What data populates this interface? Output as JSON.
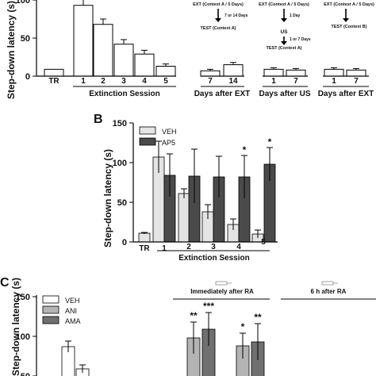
{
  "chart_data": [
    {
      "panel": "A",
      "type": "bar",
      "ylabel": "Step-down latency (s)",
      "ylim": [
        0,
        100
      ],
      "yticks": [
        0,
        50,
        100
      ],
      "groups": [
        {
          "label": "",
          "categories": [
            "TR"
          ]
        },
        {
          "label": "Extinction Session",
          "categories": [
            "1",
            "2",
            "3",
            "4",
            "5"
          ]
        },
        {
          "label": "Days after EXT",
          "categories": [
            "7",
            "14"
          ]
        },
        {
          "label": "Days after US",
          "categories": [
            "1",
            "7"
          ]
        },
        {
          "label": "Days after EXT",
          "categories": [
            "1",
            "7"
          ]
        }
      ],
      "values": [
        9,
        93,
        68,
        42,
        29,
        13,
        7,
        15,
        9,
        8,
        9,
        8
      ],
      "errors": [
        0,
        8,
        7,
        6,
        5,
        3,
        2,
        3,
        2,
        2,
        2,
        2
      ],
      "bar_color": "#ffffff",
      "annotations": {
        "ext_a": "EXT (Context A / 5 Days)",
        "ext_a_gap": "7 or 14 Days",
        "test_a": "TEST (Context A)",
        "ext_b": "EXT (Context A / 5 Days)",
        "us_gap": "1 Day",
        "us": "US",
        "us_gap2": "1 or 7 Days",
        "test_b": "TEST (Context A)",
        "ext_c": "EXT (Context A / 5 Days)",
        "test_c": "TEST (Context B)"
      }
    },
    {
      "panel": "B",
      "type": "bar",
      "ylabel": "Step-down latency (s)",
      "xlabel": "Extinction Session",
      "ylim": [
        0,
        150
      ],
      "yticks": [
        0,
        50,
        100,
        150
      ],
      "legend_position": "top-left",
      "series": [
        {
          "name": "VEH",
          "color": "#e4e4e4",
          "x": [
            "TR",
            "1",
            "2",
            "3",
            "4",
            "5"
          ],
          "values": [
            11,
            107,
            61,
            38,
            22,
            10
          ],
          "errors": [
            1,
            20,
            6,
            9,
            7,
            5
          ]
        },
        {
          "name": "AP5",
          "color": "#4a4a4a",
          "x": [
            "1",
            "2",
            "3",
            "4",
            "5"
          ],
          "values": [
            84,
            83,
            82,
            82,
            98
          ],
          "errors": [
            27,
            34,
            26,
            27,
            21
          ]
        }
      ],
      "significance": [
        {
          "x": "4",
          "series": "AP5",
          "mark": "*"
        },
        {
          "x": "5",
          "series": "AP5",
          "mark": "*"
        }
      ]
    },
    {
      "panel": "C",
      "type": "bar",
      "ylabel": "Step-down latency (s)",
      "ylim": [
        50,
        150
      ],
      "yticks": [
        50,
        100,
        150
      ],
      "legend_position": "top-left",
      "series": [
        {
          "name": "VEH",
          "color": "#ffffff"
        },
        {
          "name": "ANI",
          "color": "#b4b4b4"
        },
        {
          "name": "AMA",
          "color": "#707070"
        }
      ],
      "bars": [
        {
          "series": "VEH",
          "value": 87,
          "error": 7
        },
        {
          "series": "VEH",
          "value": 59,
          "error": 5
        },
        {
          "series": "ANI",
          "value": 98,
          "error": 20,
          "mark": "**"
        },
        {
          "series": "AMA",
          "value": 109,
          "error": 21,
          "mark": "***"
        },
        {
          "series": "ANI",
          "value": 88,
          "error": 16,
          "mark": "*"
        },
        {
          "series": "AMA",
          "value": 93,
          "error": 23,
          "mark": "**"
        }
      ],
      "group_titles": [
        "Immediately after RA",
        "6 h after RA"
      ]
    }
  ]
}
